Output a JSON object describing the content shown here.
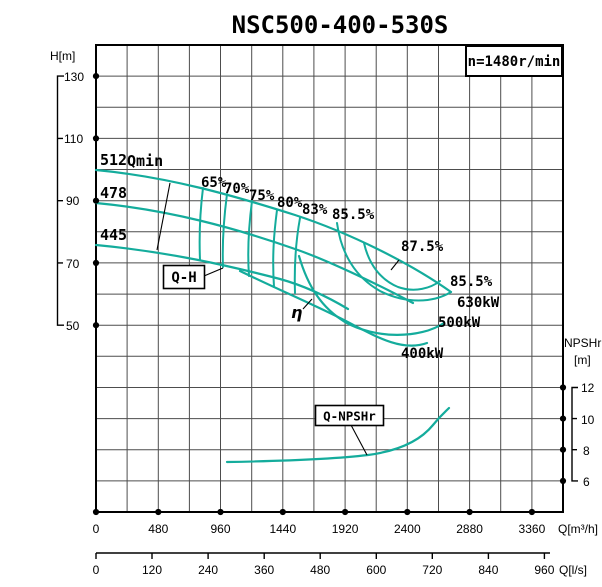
{
  "title": "NSC500-400-530S",
  "speed_label": "n=1480r/min",
  "labels": {
    "h_axis": "H[m]",
    "npshr_axis": "NPSHr",
    "npshr_unit": "[m]",
    "q_m3h_unit": "Q[m³/h]",
    "q_ls_unit": "Q[l/s]",
    "h_ticks": [
      "130",
      "110",
      "90",
      "70",
      "50"
    ],
    "npshr_ticks": [
      "12",
      "10",
      "8",
      "6"
    ],
    "q_m3h_ticks": [
      "0",
      "480",
      "960",
      "1440",
      "1920",
      "2400",
      "2880",
      "3360"
    ],
    "q_ls_ticks": [
      "0",
      "120",
      "240",
      "360",
      "480",
      "600",
      "720",
      "840",
      "960"
    ],
    "impellers": [
      "512",
      "478",
      "445"
    ],
    "efficiency": [
      "65%",
      "70%",
      "75%",
      "80%",
      "83%",
      "85.5%",
      "87.5%",
      "85.5%"
    ],
    "power": [
      "630kW",
      "500kW",
      "400kW"
    ],
    "qmin": "Qmin",
    "qh": "Q-H",
    "eta": "η",
    "qnpshr": "Q-NPSHr"
  },
  "colors": {
    "curve_teal": "#14ac9c",
    "grid_gray": "#4d4d4d",
    "frame_black": "#000000"
  },
  "chart_data": {
    "type": "line",
    "title": "NSC500-400-530S",
    "speed": "n=1480r/min",
    "x_axis": {
      "label": "Q[m³/h]",
      "ticks": [
        0,
        480,
        960,
        1440,
        1920,
        2400,
        2880,
        3360
      ],
      "range": [
        0,
        3600
      ],
      "grid_step": 240
    },
    "x_axis_secondary": {
      "label": "Q[l/s]",
      "ticks": [
        0,
        120,
        240,
        360,
        480,
        600,
        720,
        840,
        960
      ]
    },
    "y_axis_left": {
      "label": "H[m]",
      "ticks": [
        130,
        110,
        90,
        70,
        50
      ],
      "grid_step": 10
    },
    "y_axis_right": {
      "label": "NPSHr [m]",
      "ticks": [
        12,
        10,
        8,
        6
      ],
      "grid_step": 2
    },
    "grid": true,
    "series": [
      {
        "name": "Q-H impeller 512",
        "x_m3h": [
          0,
          480,
          1000,
          1500,
          2000,
          2400,
          2730
        ],
        "h_m": [
          100,
          97,
          93,
          86,
          78,
          69,
          61
        ]
      },
      {
        "name": "Q-H impeller 478",
        "x_m3h": [
          0,
          480,
          1000,
          1500,
          1880,
          2230,
          2440
        ],
        "h_m": [
          89,
          87,
          82,
          75,
          68,
          61,
          58
        ]
      },
      {
        "name": "Q-H impeller 445",
        "x_m3h": [
          0,
          480,
          1000,
          1440,
          1800,
          1940
        ],
        "h_m": [
          76,
          74,
          70,
          65,
          58,
          55
        ]
      },
      {
        "name": "Q-NPSHr",
        "x_m3h": [
          1010,
          1570,
          1960,
          2270,
          2500,
          2650,
          2720
        ],
        "npshr_m": [
          7.2,
          7.3,
          7.5,
          8.0,
          8.8,
          9.9,
          10.6
        ],
        "axis": "right"
      }
    ],
    "efficiency_contours_pct": [
      65,
      70,
      75,
      80,
      83,
      85.5,
      87.5
    ],
    "power_curve_labels_kW": [
      630,
      500,
      400
    ],
    "annotations": [
      "Qmin",
      "Q-H",
      "η",
      "Q-NPSHr"
    ],
    "legend_position": "none"
  }
}
